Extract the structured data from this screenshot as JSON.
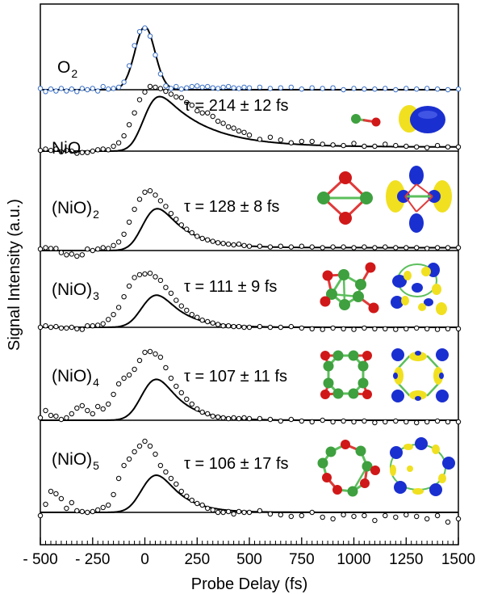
{
  "chart_data": {
    "type": "scatter",
    "xlabel": "Probe Delay (fs)",
    "ylabel": "Signal Intensity (a.u.)",
    "xlim": [
      -500,
      1500
    ],
    "ylim_per_panel": [
      0,
      1
    ],
    "x_ticks": [
      -500,
      -250,
      0,
      250,
      500,
      750,
      1000,
      1250,
      1500
    ],
    "x_tick_labels": [
      "- 500",
      "- 250",
      "0",
      "250",
      "500",
      "750",
      "1000",
      "1250",
      "1500"
    ],
    "grid": false,
    "layout": "stacked-panels",
    "panels": [
      {
        "label": "O",
        "label_sub": "2",
        "tau": "",
        "fit": {
          "model": "gaussian",
          "center": 0,
          "sigma": 48,
          "amplitude": 1.0,
          "decay": 0
        },
        "points": {
          "color": "#3a6fc4",
          "x": [
            -500,
            -475,
            -450,
            -425,
            -400,
            -375,
            -350,
            -325,
            -300,
            -275,
            -250,
            -225,
            -200,
            -175,
            -150,
            -125,
            -100,
            -75,
            -50,
            -25,
            0,
            25,
            50,
            75,
            100,
            125,
            150,
            175,
            200,
            225,
            250,
            275,
            300,
            325,
            350,
            375,
            400,
            425,
            450,
            475,
            500,
            550,
            600,
            650,
            700,
            750,
            800,
            850,
            900,
            950,
            1000,
            1050,
            1100,
            1150,
            1200,
            1250,
            1300,
            1350,
            1400,
            1450,
            1500
          ],
          "y": [
            0.02,
            -0.03,
            0.01,
            -0.02,
            0.02,
            -0.02,
            0.01,
            -0.03,
            0.02,
            0.0,
            0.02,
            -0.02,
            0.05,
            0.01,
            0.02,
            0.04,
            0.12,
            0.38,
            0.7,
            0.92,
            0.98,
            0.85,
            0.55,
            0.25,
            0.06,
            0.02,
            0.05,
            0.01,
            0.03,
            0.05,
            0.06,
            0.04,
            0.05,
            0.03,
            0.02,
            0.04,
            0.05,
            0.03,
            0.02,
            0.04,
            0.03,
            0.04,
            0.02,
            0.03,
            0.04,
            0.01,
            0.03,
            0.02,
            0.03,
            0.0,
            0.02,
            0.01,
            0.01,
            0.02,
            0.0,
            0.02,
            0.01,
            0.02,
            0.01,
            0.0,
            0.01
          ]
        }
      },
      {
        "label": "NiO",
        "label_sub": "",
        "tau": "τ = 214 ± 12 fs",
        "fit": {
          "model": "gauss-exp",
          "center": 0,
          "sigma": 50,
          "tau": 214,
          "amplitude": 0.83,
          "baseline": 0.06
        },
        "points": {
          "color": "#000000",
          "x": [
            -500,
            -475,
            -450,
            -425,
            -400,
            -375,
            -350,
            -325,
            -300,
            -275,
            -250,
            -225,
            -200,
            -175,
            -150,
            -125,
            -100,
            -75,
            -50,
            -25,
            0,
            25,
            50,
            75,
            100,
            125,
            150,
            175,
            200,
            225,
            250,
            275,
            300,
            325,
            350,
            375,
            400,
            425,
            450,
            475,
            500,
            550,
            600,
            650,
            700,
            750,
            800,
            850,
            900,
            950,
            1000,
            1050,
            1100,
            1150,
            1200,
            1250,
            1300,
            1350,
            1400,
            1450,
            1500
          ],
          "y": [
            0.01,
            0.03,
            0.01,
            0.03,
            -0.01,
            0.01,
            0.0,
            -0.03,
            -0.02,
            -0.02,
            0.0,
            0.02,
            0.03,
            0.02,
            0.07,
            0.12,
            0.22,
            0.38,
            0.55,
            0.74,
            0.85,
            0.93,
            0.92,
            0.9,
            0.86,
            0.82,
            0.78,
            0.77,
            0.7,
            0.66,
            0.58,
            0.55,
            0.55,
            0.5,
            0.43,
            0.4,
            0.35,
            0.33,
            0.29,
            0.27,
            0.23,
            0.17,
            0.2,
            0.16,
            0.12,
            0.14,
            0.14,
            0.1,
            0.09,
            0.08,
            0.11,
            0.07,
            0.07,
            0.1,
            0.08,
            0.07,
            0.06,
            0.05,
            0.08,
            0.06,
            0.06
          ]
        }
      },
      {
        "label": "(NiO)",
        "label_sub": "2",
        "tau": "τ = 128 ± 8 fs",
        "fit": {
          "model": "gauss-exp",
          "center": 0,
          "sigma": 52,
          "tau": 128,
          "amplitude": 0.78,
          "baseline": 0.04
        },
        "points": {
          "color": "#000000",
          "x": [
            -500,
            -475,
            -450,
            -425,
            -400,
            -375,
            -350,
            -325,
            -300,
            -275,
            -250,
            -225,
            -200,
            -175,
            -150,
            -125,
            -100,
            -75,
            -50,
            -25,
            0,
            25,
            50,
            75,
            100,
            125,
            150,
            175,
            200,
            225,
            250,
            275,
            300,
            325,
            350,
            375,
            400,
            425,
            450,
            475,
            500,
            550,
            600,
            650,
            700,
            750,
            800,
            850,
            900,
            950,
            1000,
            1050,
            1100,
            1150,
            1200,
            1250,
            1300,
            1350,
            1400,
            1450,
            1500
          ],
          "y": [
            0.02,
            0.04,
            0.03,
            0.03,
            -0.03,
            -0.06,
            -0.05,
            -0.08,
            -0.06,
            0.02,
            0.0,
            0.02,
            0.04,
            0.03,
            0.07,
            0.12,
            0.23,
            0.4,
            0.58,
            0.72,
            0.82,
            0.84,
            0.78,
            0.7,
            0.62,
            0.52,
            0.44,
            0.36,
            0.3,
            0.25,
            0.2,
            0.17,
            0.15,
            0.13,
            0.11,
            0.1,
            0.09,
            0.08,
            0.09,
            0.07,
            0.06,
            0.06,
            0.05,
            0.06,
            0.05,
            0.06,
            0.05,
            0.04,
            0.05,
            0.05,
            0.04,
            0.05,
            0.04,
            0.05,
            0.04,
            0.04,
            0.04,
            0.03,
            0.04,
            0.04,
            0.04
          ]
        }
      },
      {
        "label": "(NiO)",
        "label_sub": "3",
        "tau": "τ = 111 ± 9 fs",
        "fit": {
          "model": "gauss-exp",
          "center": 0,
          "sigma": 55,
          "tau": 111,
          "amplitude": 0.7,
          "baseline": 0.0
        },
        "points": {
          "color": "#000000",
          "x": [
            -500,
            -475,
            -450,
            -425,
            -400,
            -375,
            -350,
            -325,
            -300,
            -275,
            -250,
            -225,
            -200,
            -175,
            -150,
            -125,
            -100,
            -75,
            -50,
            -25,
            0,
            25,
            50,
            75,
            100,
            125,
            150,
            175,
            200,
            225,
            250,
            275,
            300,
            325,
            350,
            375,
            400,
            425,
            450,
            475,
            500,
            550,
            600,
            650,
            700,
            750,
            800,
            850,
            900,
            950,
            1000,
            1050,
            1100,
            1150,
            1200,
            1250,
            1300,
            1350,
            1400,
            1450,
            1500
          ],
          "y": [
            0.0,
            0.02,
            0.0,
            0.01,
            -0.01,
            -0.01,
            0.0,
            -0.02,
            -0.03,
            0.02,
            0.02,
            0.03,
            0.05,
            0.11,
            0.18,
            0.28,
            0.43,
            0.58,
            0.7,
            0.74,
            0.75,
            0.76,
            0.71,
            0.66,
            0.56,
            0.48,
            0.38,
            0.3,
            0.24,
            0.18,
            0.14,
            0.1,
            0.08,
            0.06,
            0.04,
            0.02,
            0.02,
            0.01,
            0.01,
            0.0,
            0.0,
            0.01,
            0.0,
            0.0,
            0.01,
            -0.01,
            -0.02,
            -0.03,
            -0.01,
            -0.02,
            -0.03,
            -0.01,
            -0.02,
            -0.02,
            -0.03,
            -0.02,
            -0.01,
            -0.02,
            -0.03,
            -0.02,
            -0.02
          ]
        }
      },
      {
        "label": "(NiO)",
        "label_sub": "4",
        "tau": "τ = 107 ± 11 fs",
        "fit": {
          "model": "gauss-exp",
          "center": 0,
          "sigma": 55,
          "tau": 107,
          "amplitude": 0.8,
          "baseline": 0.0
        },
        "points": {
          "color": "#000000",
          "x": [
            -500,
            -475,
            -450,
            -425,
            -400,
            -375,
            -350,
            -325,
            -300,
            -275,
            -250,
            -225,
            -200,
            -175,
            -150,
            -125,
            -100,
            -75,
            -50,
            -25,
            0,
            25,
            50,
            75,
            100,
            125,
            150,
            175,
            200,
            225,
            250,
            275,
            300,
            325,
            350,
            375,
            400,
            425,
            450,
            475,
            500,
            550,
            600,
            650,
            700,
            750,
            800,
            850,
            900,
            950,
            1000,
            1050,
            1100,
            1150,
            1200,
            1250,
            1300,
            1350,
            1400,
            1450,
            1500
          ],
          "y": [
            0.03,
            0.12,
            0.06,
            0.05,
            0.01,
            0.03,
            0.08,
            0.15,
            0.18,
            0.12,
            0.08,
            0.17,
            0.14,
            0.2,
            0.32,
            0.45,
            0.52,
            0.56,
            0.63,
            0.74,
            0.84,
            0.85,
            0.82,
            0.78,
            0.65,
            0.52,
            0.42,
            0.34,
            0.26,
            0.2,
            0.14,
            0.1,
            0.08,
            0.05,
            0.04,
            0.03,
            0.02,
            0.03,
            0.02,
            0.03,
            0.02,
            0.02,
            0.01,
            -0.01,
            0.01,
            -0.01,
            -0.02,
            0.0,
            -0.02,
            -0.01,
            -0.02,
            -0.01,
            -0.03,
            -0.02,
            -0.01,
            -0.02,
            -0.03,
            -0.02,
            -0.01,
            -0.02,
            -0.02
          ]
        }
      },
      {
        "label": "(NiO)",
        "label_sub": "5",
        "tau": "τ = 106 ± 17 fs",
        "fit": {
          "model": "gauss-exp",
          "center": 0,
          "sigma": 55,
          "tau": 106,
          "amplitude": 0.73,
          "baseline": 0.0
        },
        "points": {
          "color": "#000000",
          "x": [
            -500,
            -475,
            -450,
            -425,
            -400,
            -375,
            -350,
            -325,
            -300,
            -275,
            -250,
            -225,
            -200,
            -175,
            -150,
            -125,
            -100,
            -75,
            -50,
            -25,
            0,
            25,
            50,
            75,
            100,
            125,
            150,
            175,
            200,
            225,
            250,
            275,
            300,
            325,
            350,
            375,
            400,
            425,
            450,
            475,
            500,
            550,
            600,
            650,
            700,
            750,
            800,
            850,
            900,
            950,
            1000,
            1050,
            1100,
            1150,
            1200,
            1250,
            1300,
            1350,
            1400,
            1450,
            1500
          ],
          "y": [
            -0.04,
            0.1,
            0.26,
            0.23,
            0.17,
            0.05,
            0.12,
            0.02,
            0.01,
            0.0,
            0.01,
            0.03,
            0.06,
            0.09,
            0.22,
            0.42,
            0.58,
            0.66,
            0.75,
            0.82,
            0.88,
            0.82,
            0.72,
            0.58,
            0.5,
            0.42,
            0.35,
            0.26,
            0.2,
            0.15,
            0.11,
            0.09,
            0.05,
            0.03,
            0.0,
            0.0,
            0.01,
            -0.02,
            0.01,
            0.0,
            0.0,
            0.02,
            -0.02,
            -0.03,
            -0.05,
            -0.04,
            0.0,
            -0.06,
            -0.08,
            -0.03,
            -0.05,
            -0.04,
            -0.1,
            -0.04,
            -0.06,
            -0.03,
            -0.05,
            -0.08,
            -0.04,
            -0.12,
            -0.08
          ]
        }
      }
    ]
  },
  "colors": {
    "o2_points": "#3a6fc4",
    "points": "#000000",
    "fit": "#000000",
    "axis": "#000000",
    "oxygen_atom": "#d01818",
    "nickel_atom": "#3ea03e",
    "bond_red": "#e03a3a",
    "bond_green": "#5cbf5c",
    "orbital_blue": "#1a2fd0",
    "orbital_yellow": "#f0e020"
  },
  "icons": [
    "nio-structure-icon",
    "nio-orbital-icon",
    "nio2-structure-icon",
    "nio2-orbital-icon",
    "nio3-structure-icon",
    "nio3-orbital-icon",
    "nio4-structure-icon",
    "nio4-orbital-icon",
    "nio5-structure-icon",
    "nio5-orbital-icon"
  ]
}
